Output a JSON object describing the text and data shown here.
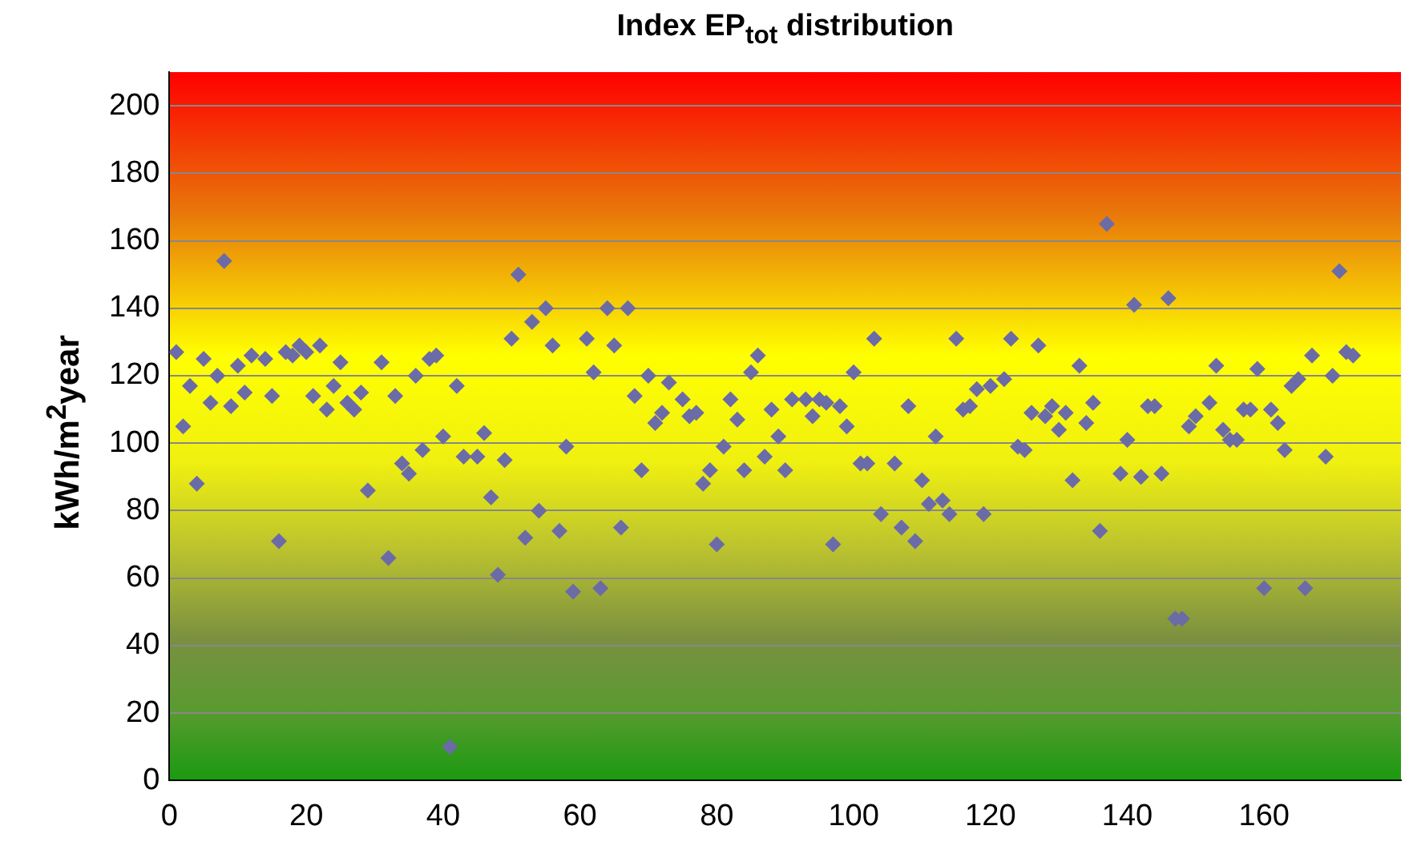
{
  "chart_data": {
    "type": "scatter",
    "title": "Index EP$_{tot}$ distribution",
    "ylabel": "kWh/m$^{2}$year",
    "xlim": [
      0,
      180
    ],
    "xticks": [
      0,
      20,
      40,
      60,
      80,
      100,
      120,
      140,
      160
    ],
    "ylim": [
      0,
      210
    ],
    "yticks": [
      0,
      20,
      40,
      60,
      80,
      100,
      120,
      140,
      160,
      180,
      200
    ],
    "grid": "y",
    "legend": false,
    "marker": "diamond",
    "series": [
      {
        "color": "#6b6ba8",
        "x": [
          1,
          2,
          3,
          4,
          5,
          6,
          7,
          8,
          9,
          10,
          11,
          12,
          14,
          15,
          16,
          17,
          18,
          19,
          20,
          21,
          22,
          23,
          24,
          25,
          26,
          27,
          28,
          29,
          31,
          32,
          33,
          34,
          35,
          36,
          37,
          38,
          39,
          40,
          41,
          42,
          43,
          45,
          46,
          47,
          48,
          49,
          50,
          51,
          52,
          53,
          54,
          55,
          56,
          57,
          58,
          59,
          61,
          62,
          63,
          64,
          65,
          66,
          67,
          68,
          69,
          70,
          71,
          72,
          73,
          75,
          76,
          77,
          78,
          79,
          80,
          81,
          82,
          83,
          84,
          85,
          86,
          87,
          88,
          89,
          90,
          91,
          93,
          94,
          95,
          96,
          97,
          98,
          99,
          100,
          101,
          102,
          103,
          104,
          106,
          107,
          108,
          109,
          110,
          111,
          112,
          113,
          114,
          115,
          116,
          117,
          118,
          119,
          120,
          122,
          123,
          124,
          125,
          126,
          127,
          128,
          129,
          130,
          131,
          132,
          133,
          134,
          135,
          136,
          137,
          139,
          140,
          141,
          142,
          143,
          144,
          145,
          146,
          147,
          148,
          149,
          150,
          152,
          153,
          154,
          155,
          156,
          157,
          158,
          159,
          160,
          161,
          162,
          163,
          164,
          165,
          166,
          167,
          169,
          170,
          171,
          172,
          173
        ],
        "values": [
          127,
          105,
          117,
          88,
          125,
          112,
          120,
          154,
          111,
          123,
          115,
          126,
          125,
          114,
          71,
          127,
          126,
          129,
          127,
          114,
          129,
          110,
          117,
          124,
          112,
          110,
          115,
          86,
          124,
          66,
          114,
          94,
          91,
          120,
          98,
          125,
          126,
          102,
          10,
          117,
          96,
          96,
          103,
          84,
          61,
          95,
          131,
          150,
          72,
          136,
          80,
          140,
          129,
          74,
          99,
          56,
          131,
          121,
          57,
          140,
          129,
          75,
          140,
          114,
          92,
          120,
          106,
          109,
          118,
          113,
          108,
          109,
          88,
          92,
          70,
          99,
          113,
          107,
          92,
          121,
          126,
          96,
          110,
          102,
          92,
          113,
          113,
          108,
          113,
          112,
          70,
          111,
          105,
          121,
          94,
          94,
          131,
          79,
          94,
          75,
          111,
          71,
          89,
          82,
          102,
          83,
          79,
          131,
          110,
          111,
          116,
          79,
          117,
          119,
          131,
          99,
          98,
          109,
          129,
          108,
          111,
          104,
          109,
          89,
          123,
          106,
          112,
          74,
          165,
          91,
          101,
          141,
          90,
          111,
          111,
          91,
          143,
          48,
          48,
          105,
          108,
          112,
          123,
          104,
          101,
          101,
          110,
          110,
          122,
          57,
          110,
          106,
          98,
          117,
          119,
          57,
          126,
          96,
          120,
          151,
          127,
          126
        ]
      }
    ]
  }
}
